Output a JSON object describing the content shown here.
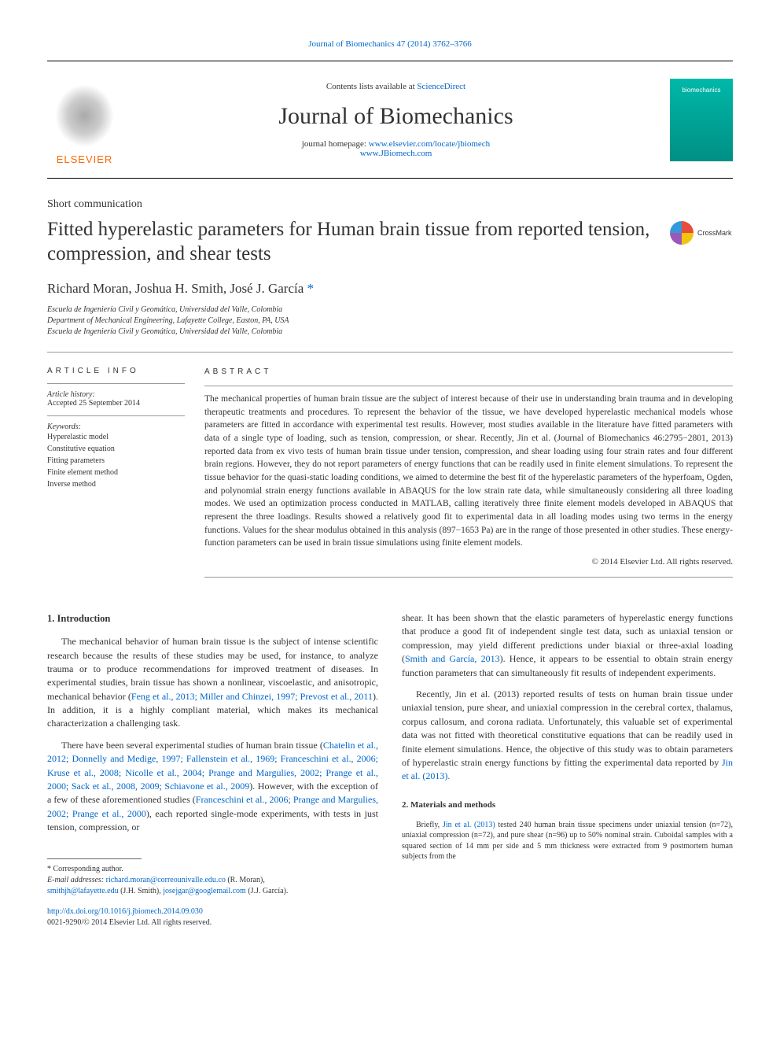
{
  "top_link": {
    "text": "Journal of Biomechanics 47 (2014) 3762–3766"
  },
  "masthead": {
    "contents_prefix": "Contents lists available at ",
    "contents_link": "ScienceDirect",
    "journal_name": "Journal of Biomechanics",
    "homepage_prefix": "journal homepage: ",
    "homepage_link1": "www.elsevier.com/locate/jbiomech",
    "homepage_link2": "www.JBiomech.com",
    "elsevier_label": "ELSEVIER",
    "cover_label": "biomechanics"
  },
  "article_type": "Short communication",
  "title": "Fitted hyperelastic parameters for Human brain tissue from reported tension, compression, and shear tests",
  "crossmark_label": "CrossMark",
  "authors": {
    "a1": "Richard Moran",
    "a2": "Joshua H. Smith",
    "a3": "José J. García",
    "corr_mark": "*"
  },
  "affiliations": {
    "l1": "Escuela de Ingeniería Civil y Geomática, Universidad del Valle, Colombia",
    "l2": "Department of Mechanical Engineering, Lafayette College, Easton, PA, USA",
    "l3": "Escuela de Ingeniería Civil y Geomática, Universidad del Valle, Colombia"
  },
  "info": {
    "heading": "ARTICLE INFO",
    "history_label": "Article history:",
    "history_value": "Accepted 25 September 2014",
    "keywords_label": "Keywords:",
    "keywords": [
      "Hyperelastic model",
      "Constitutive equation",
      "Fitting parameters",
      "Finite element method",
      "Inverse method"
    ]
  },
  "abstract": {
    "heading": "ABSTRACT",
    "text": "The mechanical properties of human brain tissue are the subject of interest because of their use in understanding brain trauma and in developing therapeutic treatments and procedures. To represent the behavior of the tissue, we have developed hyperelastic mechanical models whose parameters are fitted in accordance with experimental test results. However, most studies available in the literature have fitted parameters with data of a single type of loading, such as tension, compression, or shear. Recently, Jin et al. (Journal of Biomechanics 46:2795−2801, 2013) reported data from ex vivo tests of human brain tissue under tension, compression, and shear loading using four strain rates and four different brain regions. However, they do not report parameters of energy functions that can be readily used in finite element simulations. To represent the tissue behavior for the quasi-static loading conditions, we aimed to determine the best fit of the hyperelastic parameters of the hyperfoam, Ogden, and polynomial strain energy functions available in ABAQUS for the low strain rate data, while simultaneously considering all three loading modes. We used an optimization process conducted in MATLAB, calling iteratively three finite element models developed in ABAQUS that represent the three loadings. Results showed a relatively good fit to experimental data in all loading modes using two terms in the energy functions. Values for the shear modulus obtained in this analysis (897−1653 Pa) are in the range of those presented in other studies. These energy-function parameters can be used in brain tissue simulations using finite element models.",
    "copyright": "© 2014 Elsevier Ltd. All rights reserved."
  },
  "body": {
    "left": {
      "heading": "1.  Introduction",
      "p1_a": "The mechanical behavior of human brain tissue is the subject of intense scientific research because the results of these studies may be used, for instance, to analyze trauma or to produce recommendations for improved treatment of diseases. In experimental studies, brain tissue has shown a nonlinear, viscoelastic, and anisotropic, mechanical behavior (",
      "p1_ref": "Feng et al., 2013; Miller and Chinzei, 1997; Prevost et al., 2011",
      "p1_b": "). In addition, it is a highly compliant material, which makes its mechanical characterization a challenging task.",
      "p2_a": "There have been several experimental studies of human brain tissue (",
      "p2_ref1": "Chatelin et al., 2012; Donnelly and Medige, 1997; Fallenstein et al., 1969; Franceschini et al., 2006; Kruse et al., 2008; Nicolle et al., 2004; Prange and Margulies, 2002; Prange et al., 2000; Sack et al., 2008, 2009; Schiavone et al., 2009",
      "p2_b": "). However, with the exception of a few of these aforementioned studies (",
      "p2_ref2": "Franceschini et al., 2006; Prange and Margulies, 2002; Prange et al., 2000",
      "p2_c": "), each reported single-mode experiments, with tests in just tension, compression, or"
    },
    "right": {
      "p1_a": "shear. It has been shown that the elastic parameters of hyperelastic energy functions that produce a good fit of independent single test data, such as uniaxial tension or compression, may yield different predictions under biaxial or three-axial loading (",
      "p1_ref": "Smith and García, 2013",
      "p1_b": "). Hence, it appears to be essential to obtain strain energy function parameters that can simultaneously fit results of independent experiments.",
      "p2_a": "Recently, Jin et al. (2013) reported results of tests on human brain tissue under uniaxial tension, pure shear, and uniaxial compression in the cerebral cortex, thalamus, corpus callosum, and corona radiata. Unfortunately, this valuable set of experimental data was not fitted with theoretical constitutive equations that can be readily used in finite element simulations. Hence, the objective of this study was to obtain parameters of hyperelastic strain energy functions by fitting the experimental data reported by ",
      "p2_ref": "Jin et al. (2013).",
      "heading2": "2.  Materials and methods",
      "p3_a": "Briefly, ",
      "p3_ref": "Jin et al. (2013)",
      "p3_b": " tested 240 human brain tissue specimens under uniaxial tension (n=72), uniaxial compression (n=72), and pure shear (n=96) up to 50% nominal strain. Cuboidal samples with a squared section of 14 mm per side and 5 mm thickness were extracted from 9 postmortem human subjects from the"
    }
  },
  "footnotes": {
    "corr": "* Corresponding author.",
    "email_label": "E-mail addresses: ",
    "e1": "richard.moran@correounivalle.edu.co",
    "e1_who": " (R. Moran),",
    "e2": "smithjh@lafayette.edu",
    "e2_who": " (J.H. Smith), ",
    "e3": "josejgar@googlemail.com",
    "e3_who": " (J.J. García)."
  },
  "doi": {
    "link": "http://dx.doi.org/10.1016/j.jbiomech.2014.09.030",
    "issn": "0021-9290/© 2014 Elsevier Ltd. All rights reserved."
  },
  "colors": {
    "link": "#0066cc",
    "elsevier_orange": "#ff6600",
    "cover_bg": "#00a99d"
  }
}
